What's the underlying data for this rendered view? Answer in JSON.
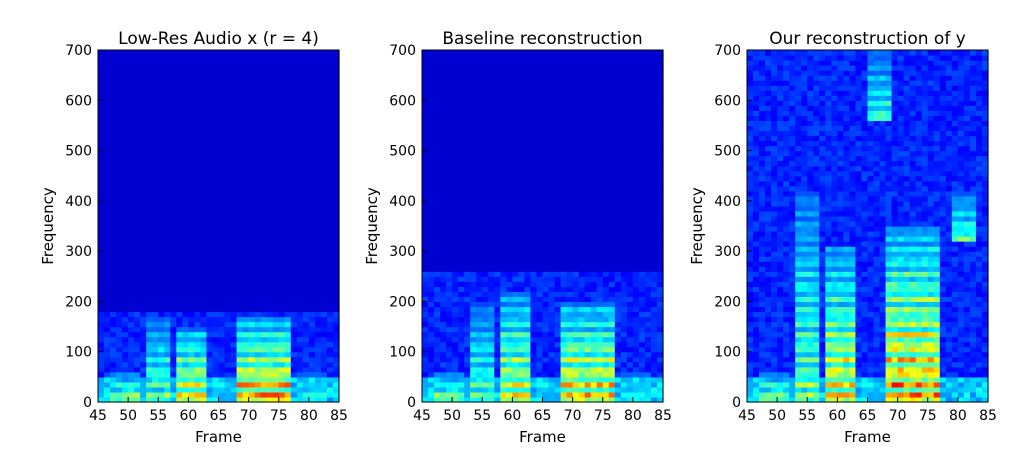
{
  "chart_data": [
    {
      "type": "heatmap",
      "title": "Low-Res Audio x (r = 4)",
      "xlabel": "Frame",
      "ylabel": "Frequency",
      "xlim": [
        45,
        85
      ],
      "ylim": [
        0,
        700
      ],
      "xticks": [
        "45",
        "50",
        "55",
        "60",
        "65",
        "70",
        "75",
        "80",
        "85"
      ],
      "yticks": [
        "0",
        "100",
        "200",
        "300",
        "400",
        "500",
        "600",
        "700"
      ],
      "colormap": "jet",
      "frequency_cutoff": 175,
      "energy_bands": [
        {
          "frame_range": [
            47,
            52
          ],
          "freq_range": [
            0,
            60
          ],
          "level": 0.55
        },
        {
          "frame_range": [
            53,
            57
          ],
          "freq_range": [
            0,
            170
          ],
          "level": 0.5
        },
        {
          "frame_range": [
            58,
            63
          ],
          "freq_range": [
            0,
            150
          ],
          "level": 0.7
        },
        {
          "frame_range": [
            68,
            77
          ],
          "freq_range": [
            0,
            170
          ],
          "level": 0.8
        },
        {
          "frame_range": [
            78,
            83
          ],
          "freq_range": [
            0,
            60
          ],
          "level": 0.35
        }
      ]
    },
    {
      "type": "heatmap",
      "title": "Baseline reconstruction",
      "xlabel": "Frame",
      "ylabel": "Frequency",
      "xlim": [
        45,
        85
      ],
      "ylim": [
        0,
        700
      ],
      "xticks": [
        "45",
        "50",
        "55",
        "60",
        "65",
        "70",
        "75",
        "80",
        "85"
      ],
      "yticks": [
        "0",
        "100",
        "200",
        "300",
        "400",
        "500",
        "600",
        "700"
      ],
      "colormap": "jet",
      "frequency_cutoff": 260,
      "energy_bands": [
        {
          "frame_range": [
            47,
            52
          ],
          "freq_range": [
            0,
            60
          ],
          "level": 0.55
        },
        {
          "frame_range": [
            53,
            57
          ],
          "freq_range": [
            0,
            200
          ],
          "level": 0.45
        },
        {
          "frame_range": [
            58,
            63
          ],
          "freq_range": [
            0,
            220
          ],
          "level": 0.65
        },
        {
          "frame_range": [
            68,
            77
          ],
          "freq_range": [
            0,
            200
          ],
          "level": 0.75
        },
        {
          "frame_range": [
            78,
            83
          ],
          "freq_range": [
            0,
            60
          ],
          "level": 0.35
        }
      ]
    },
    {
      "type": "heatmap",
      "title": "Our reconstruction of y",
      "xlabel": "Frame",
      "ylabel": "Frequency",
      "xlim": [
        45,
        85
      ],
      "ylim": [
        0,
        700
      ],
      "xticks": [
        "45",
        "50",
        "55",
        "60",
        "65",
        "70",
        "75",
        "80",
        "85"
      ],
      "yticks": [
        "0",
        "100",
        "200",
        "300",
        "400",
        "500",
        "600",
        "700"
      ],
      "colormap": "jet",
      "frequency_cutoff": 700,
      "energy_bands": [
        {
          "frame_range": [
            47,
            52
          ],
          "freq_range": [
            0,
            60
          ],
          "level": 0.55
        },
        {
          "frame_range": [
            53,
            57
          ],
          "freq_range": [
            0,
            420
          ],
          "level": 0.5
        },
        {
          "frame_range": [
            58,
            63
          ],
          "freq_range": [
            0,
            310
          ],
          "level": 0.7
        },
        {
          "frame_range": [
            65,
            69
          ],
          "freq_range": [
            560,
            700
          ],
          "level": 0.4
        },
        {
          "frame_range": [
            68,
            77
          ],
          "freq_range": [
            0,
            350
          ],
          "level": 0.8
        },
        {
          "frame_range": [
            79,
            83
          ],
          "freq_range": [
            320,
            420
          ],
          "level": 0.45
        }
      ]
    }
  ]
}
